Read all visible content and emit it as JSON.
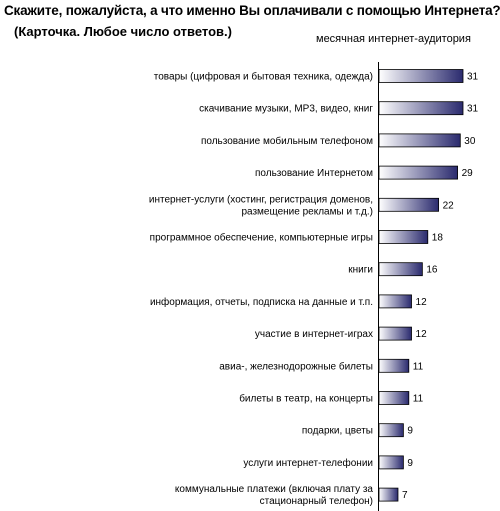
{
  "title": "Скажите, пожалуйста, а что именно Вы оплачивали с помощью Интернета?",
  "subtitle": "(Карточка. Любое число ответов.)",
  "chart_data": {
    "type": "bar",
    "orientation": "horizontal",
    "series": [
      {
        "name": "месячная интернет-аудитория",
        "values": [
          31,
          31,
          30,
          29,
          22,
          18,
          16,
          12,
          12,
          11,
          11,
          9,
          9,
          7
        ]
      }
    ],
    "categories": [
      [
        "товары (цифровая и бытовая техника, одежда)"
      ],
      [
        "скачивание музыки, МР3, видео, книг"
      ],
      [
        "пользование мобильным телефоном"
      ],
      [
        "пользование Интернетом"
      ],
      [
        "интернет-услуги  (хостинг, регистрация доменов,",
        "размещение рекламы и т.д.)"
      ],
      [
        "программное обеспечение, компьютерные игры"
      ],
      [
        "книги"
      ],
      [
        "информация, отчеты, подписка на данные и т.п."
      ],
      [
        "участие в интернет-играх"
      ],
      [
        "авиа-, железнодорожные билеты"
      ],
      [
        "билеты в театр, на концерты"
      ],
      [
        "подарки, цветы"
      ],
      [
        "услуги интернет-телефонии"
      ],
      [
        "коммунальные платежи (включая плату за",
        "стационарный телефон)"
      ]
    ],
    "legend": "top-right",
    "grid": false,
    "bar_color_left": "#ffffff",
    "bar_color_right": "#2a2a6e"
  }
}
